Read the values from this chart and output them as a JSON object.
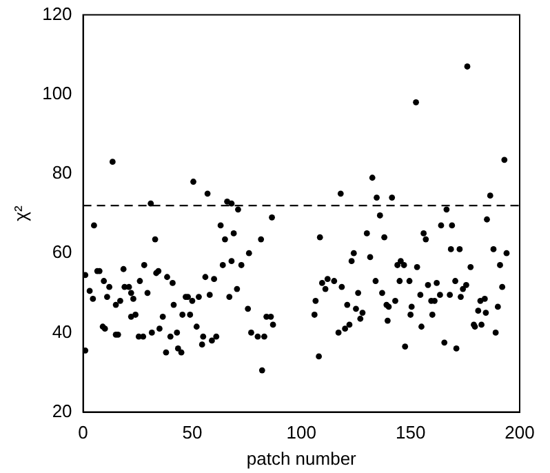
{
  "chart_data": {
    "type": "scatter",
    "xlabel": "patch number",
    "ylabel": "χ²",
    "x": [
      1,
      1,
      3,
      4.5,
      5,
      6.5,
      7.5,
      9.5,
      11,
      9,
      10,
      13.5,
      12,
      15,
      16,
      15,
      17,
      18.5,
      19,
      21,
      22,
      23,
      22,
      24,
      25.5,
      27.5,
      26,
      28,
      29.5,
      31,
      33,
      33.5,
      34.5,
      31.5,
      35,
      36.5,
      38.5,
      38,
      40,
      41,
      41.5,
      43,
      43.5,
      45,
      45.5,
      47,
      48,
      49,
      50,
      50.5,
      53,
      52,
      54.5,
      55,
      56,
      57,
      58,
      59,
      60,
      61,
      63,
      64,
      65,
      66,
      68,
      69,
      71,
      68,
      72.5,
      76,
      67,
      70.5,
      75.5,
      77,
      80,
      83,
      82,
      81.5,
      84,
      86,
      87,
      86.5,
      106,
      106.5,
      108,
      108.5,
      109.5,
      111,
      112,
      115,
      117,
      118,
      118.5,
      120,
      121,
      122,
      123,
      124,
      125,
      126,
      127,
      128,
      130,
      131.5,
      132.5,
      134.5,
      136,
      141.5,
      138,
      134,
      137,
      139,
      140,
      139.5,
      143,
      144,
      145.5,
      147,
      145,
      149.5,
      147.5,
      150.5,
      150,
      152.5,
      153,
      154.5,
      155,
      156,
      157,
      158,
      159.5,
      160,
      161,
      162,
      163.5,
      164,
      165.5,
      166.5,
      168,
      168.5,
      169,
      170.5,
      171,
      172.5,
      173,
      174,
      175.5,
      176,
      177.5,
      179,
      179.5,
      181,
      182,
      182.5,
      184,
      184.5,
      185,
      186.5,
      188,
      189,
      190,
      191,
      192,
      193,
      194
    ],
    "values": [
      35.5,
      54.5,
      50.5,
      48.5,
      67,
      55.5,
      55.5,
      53,
      49,
      41.5,
      41,
      83,
      51.5,
      39.5,
      39.5,
      47,
      48,
      56,
      51.5,
      51.5,
      50,
      48.5,
      44,
      44.5,
      39,
      39,
      53,
      57,
      50,
      72.5,
      63.5,
      55,
      55.5,
      40,
      41,
      44,
      54,
      35,
      39,
      52.5,
      47,
      40,
      36,
      35,
      44.5,
      49,
      49,
      44.5,
      48,
      78,
      49,
      41.5,
      37,
      39,
      54,
      75,
      49.5,
      38,
      53.5,
      39,
      67,
      57,
      63.5,
      73,
      72.5,
      65,
      71,
      58,
      57,
      60,
      49,
      51,
      46,
      40,
      39,
      39,
      30.5,
      63.5,
      44,
      44,
      42,
      69,
      44.5,
      48,
      34,
      64,
      52.5,
      51,
      53.5,
      53,
      40,
      75,
      51.5,
      41,
      47,
      42,
      58,
      60,
      46,
      50,
      43.5,
      45,
      65,
      59,
      79,
      74,
      69.5,
      74,
      64,
      53,
      50,
      47,
      46.5,
      43,
      48,
      57,
      58,
      57,
      53,
      53,
      36.5,
      46.5,
      44.5,
      98,
      56.5,
      49.5,
      41.5,
      65,
      63.5,
      52,
      48,
      44.5,
      48,
      52.5,
      49.5,
      67,
      37.5,
      71,
      49.5,
      61,
      67,
      53,
      36,
      61,
      49,
      51,
      52,
      107,
      56.5,
      42,
      41.5,
      45.5,
      48,
      42,
      48.5,
      45,
      68.5,
      74.5,
      61,
      40,
      46.5,
      57,
      51.5,
      83.5,
      60
    ],
    "color": "#000000",
    "marker": "circle",
    "xlim": [
      0,
      200
    ],
    "xticks": [
      0,
      50,
      100,
      150,
      200
    ],
    "ylim": [
      20,
      120
    ],
    "yticks": [
      20,
      40,
      60,
      80,
      100,
      120
    ],
    "grid": false,
    "ref_lines": [
      {
        "axis": "y",
        "value": 72,
        "color": "#000000",
        "line_style": "dashed"
      }
    ]
  }
}
